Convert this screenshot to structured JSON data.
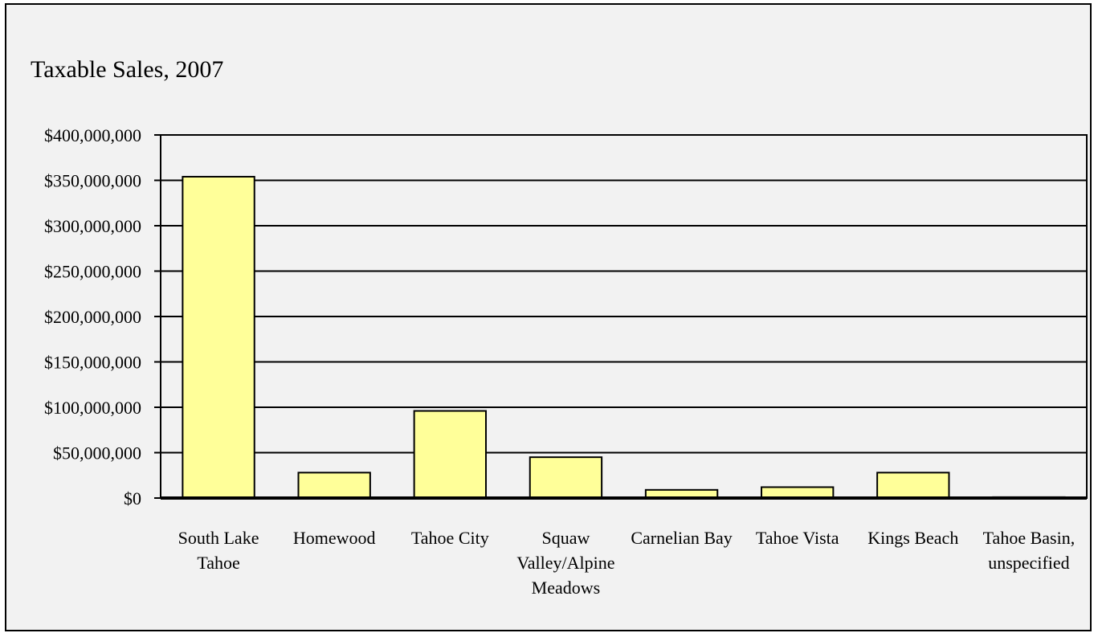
{
  "chart_data": {
    "type": "bar",
    "title": "Taxable Sales, 2007",
    "xlabel": "",
    "ylabel": "",
    "ylim": [
      0,
      400000000
    ],
    "y_ticks": [
      0,
      50000000,
      100000000,
      150000000,
      200000000,
      250000000,
      300000000,
      350000000,
      400000000
    ],
    "y_tick_labels": [
      "$0",
      "$50,000,000",
      "$100,000,000",
      "$150,000,000",
      "$200,000,000",
      "$250,000,000",
      "$300,000,000",
      "$350,000,000",
      "$400,000,000"
    ],
    "categories": [
      [
        "South Lake",
        "Tahoe"
      ],
      [
        "Homewood"
      ],
      [
        "Tahoe City"
      ],
      [
        "Squaw",
        "Valley/Alpine",
        "Meadows"
      ],
      [
        "Carnelian Bay"
      ],
      [
        "Tahoe Vista"
      ],
      [
        "Kings Beach"
      ],
      [
        "Tahoe Basin,",
        "unspecified"
      ]
    ],
    "values": [
      354000000,
      28000000,
      96000000,
      45000000,
      9000000,
      12000000,
      28000000,
      1000000
    ],
    "grid": true,
    "legend": "none",
    "colors": {
      "bar_fill": "#ffff99",
      "bar_stroke": "#000000",
      "gridline": "#000000",
      "background": "#f2f2f2"
    }
  }
}
